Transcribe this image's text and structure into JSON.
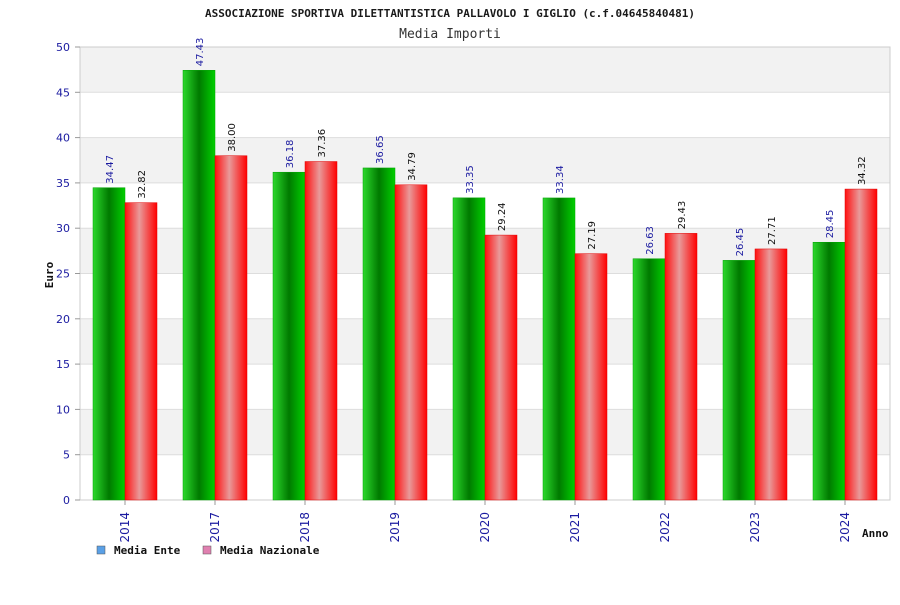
{
  "chart_data": {
    "type": "bar",
    "title": "ASSOCIAZIONE SPORTIVA DILETTANTISTICA PALLAVOLO I GIGLIO (c.f.04645840481)",
    "subtitle": "Media Importi",
    "xlabel": "Anno",
    "ylabel": "Euro",
    "ylim": [
      0,
      50
    ],
    "yticks": [
      0,
      5,
      10,
      15,
      20,
      25,
      30,
      35,
      40,
      45,
      50
    ],
    "grid": true,
    "legend_position": "bottom-left",
    "categories": [
      "2014",
      "2017",
      "2018",
      "2019",
      "2020",
      "2021",
      "2022",
      "2023",
      "2024"
    ],
    "series": [
      {
        "name": "Media Ente",
        "values": [
          34.47,
          47.43,
          36.18,
          36.65,
          33.35,
          33.34,
          26.63,
          26.45,
          28.45
        ],
        "labels": [
          "34.47",
          "47.43",
          "36.18",
          "36.65",
          "33.35",
          "33.34",
          "26.63",
          "26.45",
          "28.45"
        ],
        "color": "#00c000",
        "legend_color": "#5aa0e6"
      },
      {
        "name": "Media Nazionale",
        "values": [
          32.82,
          38.0,
          37.36,
          34.79,
          29.24,
          27.19,
          29.43,
          27.71,
          34.32
        ],
        "labels": [
          "32.82",
          "38.00",
          "37.36",
          "34.79",
          "29.24",
          "27.19",
          "29.43",
          "27.71",
          "34.32"
        ],
        "color": "#ff1a1a",
        "legend_color": "#e080b0"
      }
    ]
  }
}
